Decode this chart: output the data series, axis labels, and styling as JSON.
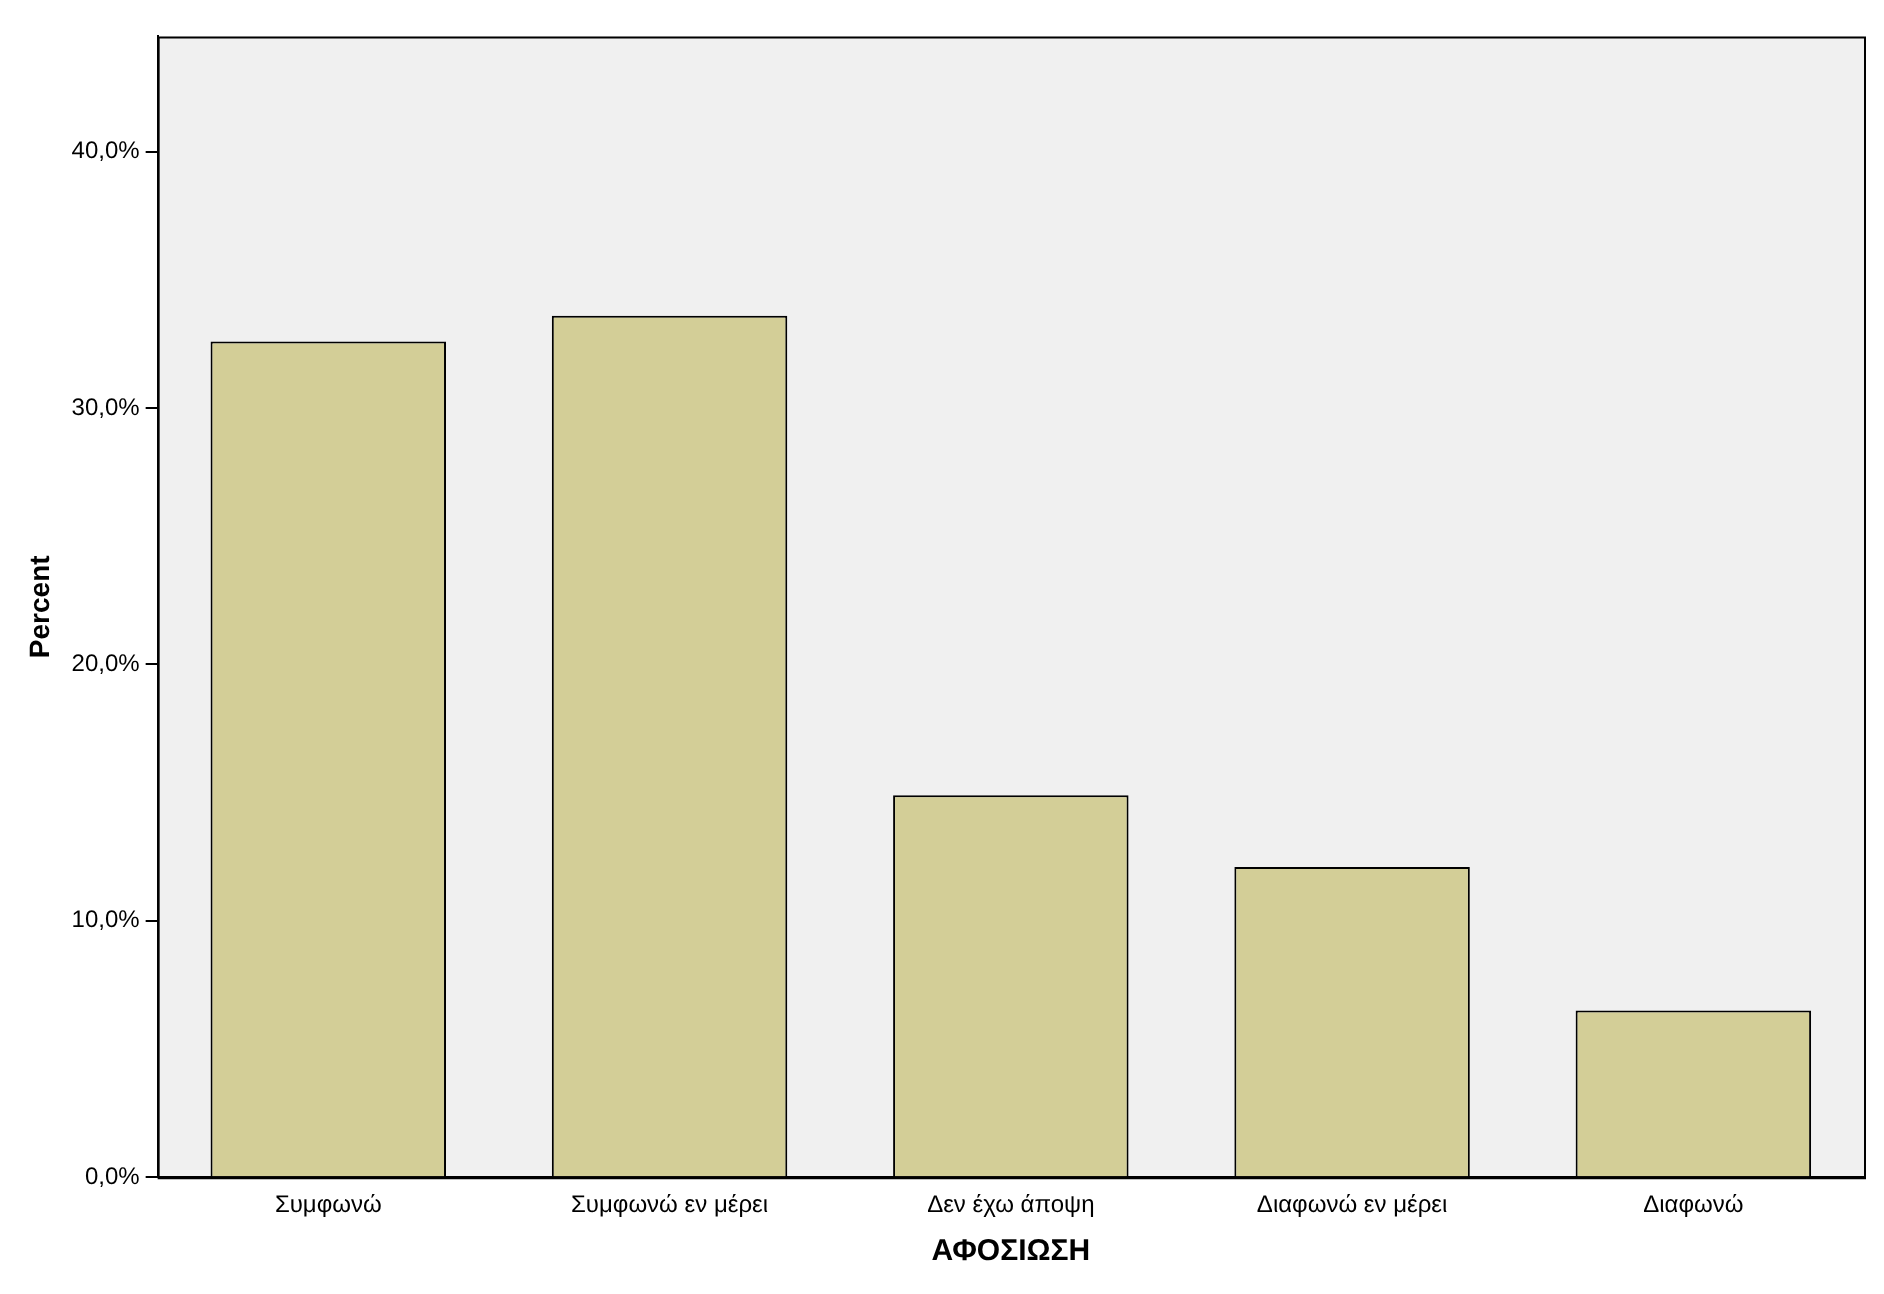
{
  "chart_data": {
    "type": "bar",
    "xlabel": "ΑΦΟΣΙΩΣΗ",
    "ylabel": "Percent",
    "categories": [
      "Συμφωνώ",
      "Συμφωνώ εν μέρει",
      "Δεν έχω άποψη",
      "Διαφωνώ εν μέρει",
      "Διαφωνώ"
    ],
    "values": [
      32.6,
      33.6,
      14.9,
      12.1,
      6.5
    ],
    "color": "#d3ce97",
    "ylim": [
      0,
      44.5
    ],
    "yticks": [
      {
        "value": 0,
        "label": "0,0%"
      },
      {
        "value": 10,
        "label": "10,0%"
      },
      {
        "value": 20,
        "label": "20,0%"
      },
      {
        "value": 30,
        "label": "30,0%"
      },
      {
        "value": 40,
        "label": "40,0%"
      }
    ],
    "grid": false,
    "legend": false
  }
}
